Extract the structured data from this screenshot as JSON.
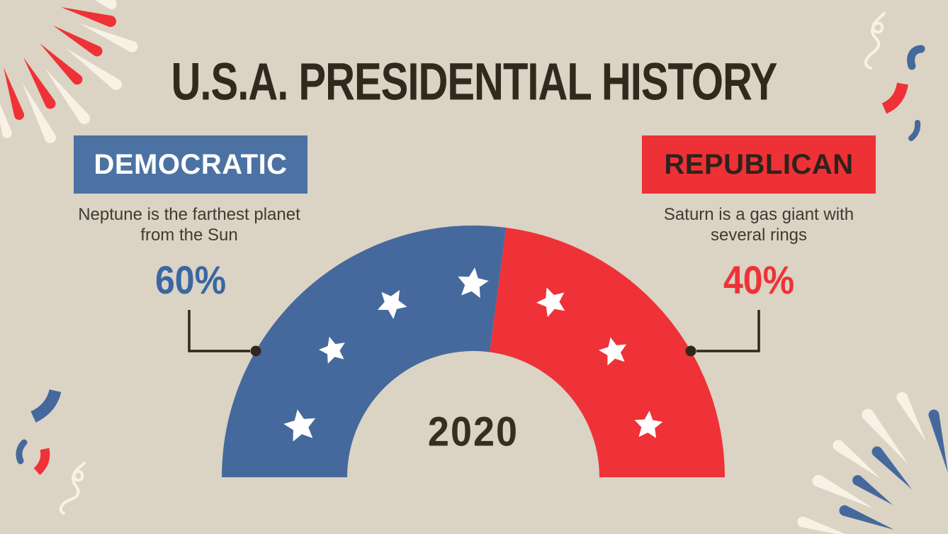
{
  "header": {
    "title": "U.S.A. PRESIDENTIAL HISTORY"
  },
  "gauge": {
    "year_label": "2020"
  },
  "parties": {
    "democratic": {
      "label": "DEMOCRATIC",
      "fact": "Neptune is the farthest planet from the Sun",
      "percent_label": "60%"
    },
    "republican": {
      "label": "REPUBLICAN",
      "fact": "Saturn is a gas giant with several rings",
      "percent_label": "40%"
    }
  },
  "chart_data": {
    "type": "pie",
    "variant": "semicircle_gauge",
    "title": "U.S.A. PRESIDENTIAL HISTORY",
    "center_label": "2020",
    "series": [
      {
        "name": "Democratic",
        "value": 60,
        "unit": "%",
        "color": "#45699C",
        "label": "60%",
        "annotation": "Neptune is the farthest planet from the Sun",
        "star_count": 4
      },
      {
        "name": "Republican",
        "value": 40,
        "unit": "%",
        "color": "#EE3237",
        "label": "40%",
        "annotation": "Saturn is a gas giant with several rings",
        "star_count": 3
      }
    ],
    "start_angle_deg": 180,
    "end_angle_deg": 0,
    "inner_radius_ratio": 0.5,
    "legend_position": "sides",
    "grid": false
  },
  "palette": {
    "background": "#DBD3C4",
    "blue": "#45699C",
    "red": "#EE3237",
    "cream": "#F8F2E6",
    "star_white": "#FFFFFF",
    "title_dark": "#33281E",
    "caption_gray": "#3F3B33",
    "connector_dark": "#2F271E",
    "banner_blue": "#4B72A3",
    "banner_red": "#EE3136",
    "percent_blue": "#3A67A2",
    "percent_red": "#EE3237"
  },
  "decor": {
    "top_left": {
      "icon": "firework-burst-icon",
      "colors": [
        "#F8F2E6",
        "#EE3237"
      ]
    },
    "top_right": {
      "icon": "confetti-icon",
      "pieces": [
        "curly-ribbon",
        "comma",
        "macaroni",
        "comma"
      ],
      "colors": [
        "#F8F2E6",
        "#45699C",
        "#EE3237"
      ]
    },
    "bottom_left": {
      "icon": "confetti-icon",
      "pieces": [
        "macaroni",
        "comma",
        "macaroni",
        "curly-ribbon"
      ],
      "colors": [
        "#45699C",
        "#EE3237",
        "#F8F2E6"
      ]
    },
    "bottom_right": {
      "icon": "firework-burst-icon",
      "colors": [
        "#F8F2E6",
        "#45699C"
      ]
    }
  }
}
